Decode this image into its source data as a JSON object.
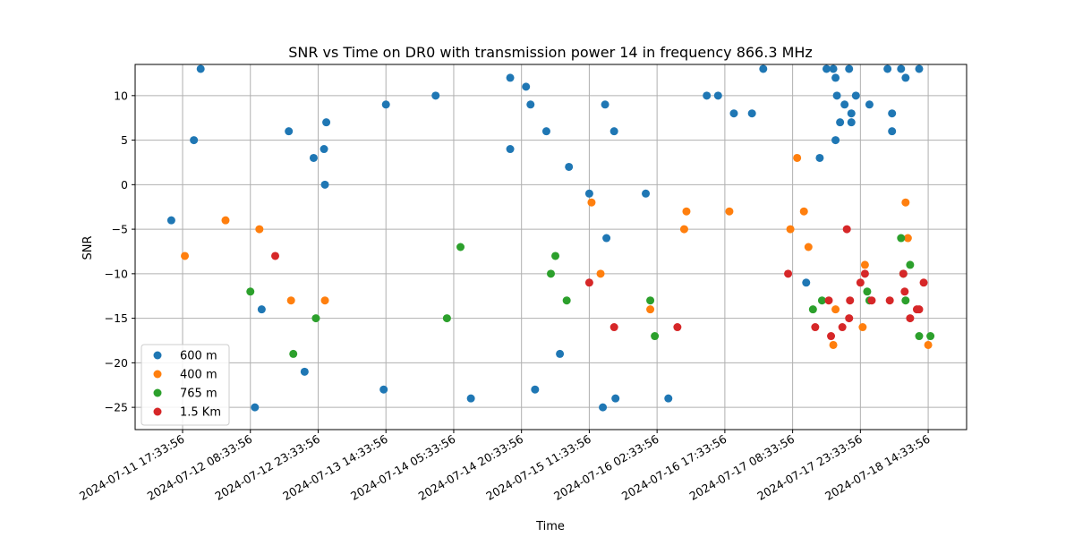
{
  "chart_data": {
    "type": "scatter",
    "title": "SNR vs Time on DR0 with transmission power 14 in frequency 866.3 MHz",
    "xlabel": "Time",
    "ylabel": "SNR",
    "x_ticks": [
      {
        "label": "2024-07-11 17:33:56",
        "hours": 0
      },
      {
        "label": "2024-07-12 08:33:56",
        "hours": 15
      },
      {
        "label": "2024-07-12 23:33:56",
        "hours": 30
      },
      {
        "label": "2024-07-13 14:33:56",
        "hours": 45
      },
      {
        "label": "2024-07-14 05:33:56",
        "hours": 60
      },
      {
        "label": "2024-07-14 20:33:56",
        "hours": 75
      },
      {
        "label": "2024-07-15 11:33:56",
        "hours": 90
      },
      {
        "label": "2024-07-16 02:33:56",
        "hours": 105
      },
      {
        "label": "2024-07-16 17:33:56",
        "hours": 120
      },
      {
        "label": "2024-07-17 08:33:56",
        "hours": 135
      },
      {
        "label": "2024-07-17 23:33:56",
        "hours": 150
      },
      {
        "label": "2024-07-18 14:33:56",
        "hours": 165
      }
    ],
    "y_ticks": [
      -25,
      -20,
      -15,
      -10,
      -5,
      0,
      5,
      10
    ],
    "xlim_hours": [
      -10.5,
      173.5
    ],
    "ylim": [
      -27.5,
      13.5
    ],
    "grid": true,
    "legend_position": "lower-left",
    "series": [
      {
        "name": "600 m",
        "color": "#1f77b4",
        "points": [
          [
            -2.5,
            -4
          ],
          [
            2.5,
            5
          ],
          [
            4,
            13
          ],
          [
            17.5,
            -14
          ],
          [
            23.5,
            6
          ],
          [
            29,
            3
          ],
          [
            31.3,
            4
          ],
          [
            31.5,
            0
          ],
          [
            31.8,
            7
          ],
          [
            27,
            -21
          ],
          [
            16,
            -25
          ],
          [
            45,
            9
          ],
          [
            44.5,
            -23
          ],
          [
            56,
            10
          ],
          [
            63.8,
            -24
          ],
          [
            72.5,
            4
          ],
          [
            72.5,
            12
          ],
          [
            76,
            11
          ],
          [
            77,
            9
          ],
          [
            78,
            -23
          ],
          [
            80.5,
            6
          ],
          [
            83.5,
            -19
          ],
          [
            85.5,
            2
          ],
          [
            90,
            -1
          ],
          [
            93,
            -25
          ],
          [
            93.5,
            9
          ],
          [
            93.8,
            -6
          ],
          [
            95.5,
            6
          ],
          [
            95.8,
            -24
          ],
          [
            102.5,
            -1
          ],
          [
            107.5,
            -24
          ],
          [
            116,
            10
          ],
          [
            118.5,
            10
          ],
          [
            122,
            8
          ],
          [
            126,
            8
          ],
          [
            128.5,
            13
          ],
          [
            138,
            -11
          ],
          [
            141,
            3
          ],
          [
            142.5,
            13
          ],
          [
            144,
            13
          ],
          [
            144.5,
            12
          ],
          [
            144.8,
            10
          ],
          [
            144.5,
            5
          ],
          [
            145.5,
            7
          ],
          [
            146.5,
            9
          ],
          [
            147.5,
            13
          ],
          [
            148,
            8
          ],
          [
            148,
            7
          ],
          [
            149,
            10
          ],
          [
            152,
            9
          ],
          [
            156,
            13
          ],
          [
            157,
            8
          ],
          [
            157,
            6
          ],
          [
            159,
            13
          ],
          [
            160,
            12
          ],
          [
            163,
            13
          ]
        ]
      },
      {
        "name": "400 m",
        "color": "#ff7f0e",
        "points": [
          [
            0.5,
            -8
          ],
          [
            9.5,
            -4
          ],
          [
            24,
            -13
          ],
          [
            31.5,
            -13
          ],
          [
            17,
            -5
          ],
          [
            90.5,
            -2
          ],
          [
            92.5,
            -10
          ],
          [
            103.5,
            -14
          ],
          [
            111,
            -5
          ],
          [
            111.5,
            -3
          ],
          [
            121,
            -3
          ],
          [
            134.5,
            -5
          ],
          [
            136,
            3
          ],
          [
            137.5,
            -3
          ],
          [
            138.5,
            -7
          ],
          [
            144,
            -18
          ],
          [
            144.5,
            -14
          ],
          [
            150.5,
            -16
          ],
          [
            151,
            -9
          ],
          [
            160,
            -2
          ],
          [
            160.5,
            -6
          ],
          [
            165,
            -18
          ]
        ]
      },
      {
        "name": "765 m",
        "color": "#2ca02c",
        "points": [
          [
            15,
            -12
          ],
          [
            24.5,
            -19
          ],
          [
            29.5,
            -15
          ],
          [
            58.5,
            -15
          ],
          [
            61.5,
            -7
          ],
          [
            81.5,
            -10
          ],
          [
            82.5,
            -8
          ],
          [
            85,
            -13
          ],
          [
            103.5,
            -13
          ],
          [
            104.5,
            -17
          ],
          [
            139.5,
            -14
          ],
          [
            141.5,
            -13
          ],
          [
            151.5,
            -12
          ],
          [
            152,
            -13
          ],
          [
            159,
            -6
          ],
          [
            159.5,
            -10
          ],
          [
            160,
            -13
          ],
          [
            161,
            -9
          ],
          [
            163,
            -17
          ],
          [
            165.5,
            -17
          ]
        ]
      },
      {
        "name": "1.5 Km",
        "color": "#d62728",
        "points": [
          [
            20.5,
            -8
          ],
          [
            90,
            -11
          ],
          [
            95.5,
            -16
          ],
          [
            109.5,
            -16
          ],
          [
            134,
            -10
          ],
          [
            140,
            -16
          ],
          [
            143,
            -13
          ],
          [
            143.5,
            -17
          ],
          [
            146,
            -16
          ],
          [
            147,
            -5
          ],
          [
            147.5,
            -15
          ],
          [
            147.7,
            -13
          ],
          [
            150,
            -11
          ],
          [
            151,
            -10
          ],
          [
            152.5,
            -13
          ],
          [
            156.5,
            -13
          ],
          [
            159.5,
            -10
          ],
          [
            159.8,
            -12
          ],
          [
            161,
            -15
          ],
          [
            162.5,
            -14
          ],
          [
            163,
            -14
          ],
          [
            164,
            -11
          ]
        ]
      }
    ]
  }
}
